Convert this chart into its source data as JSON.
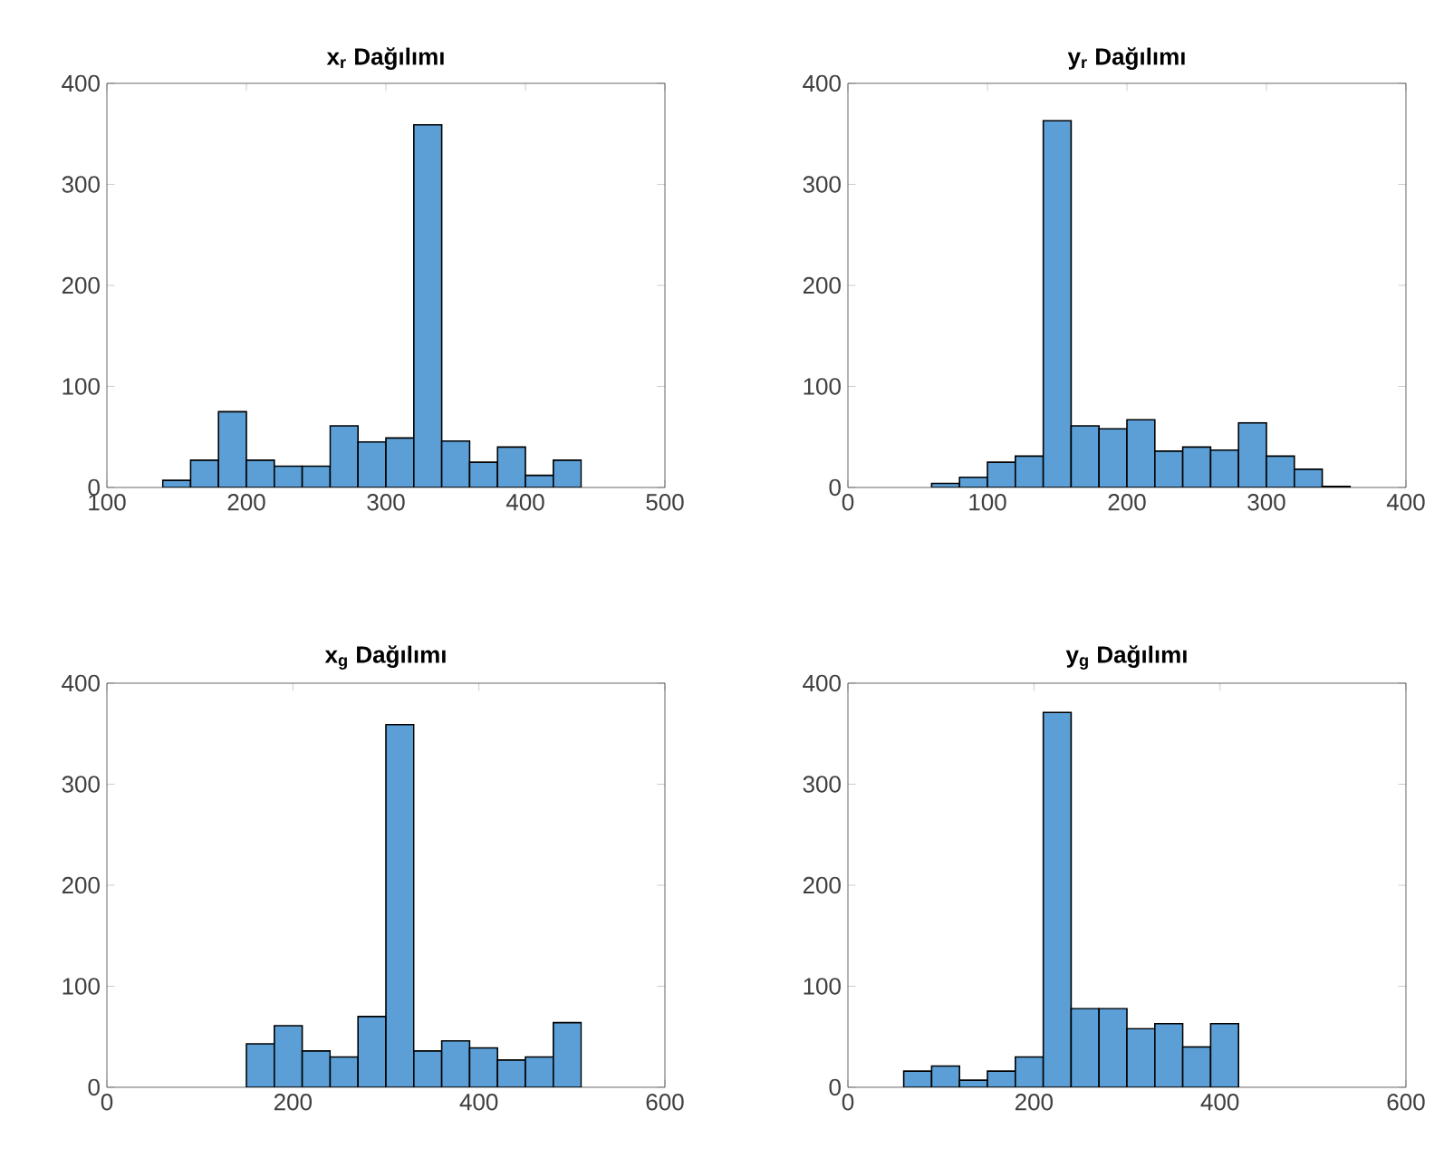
{
  "chart_data": [
    {
      "type": "histogram",
      "title": "x$_{r}$ Dağılımı",
      "bins": [
        140,
        160,
        180,
        200,
        220,
        240,
        260,
        280,
        300,
        320,
        340,
        360,
        380,
        400,
        420,
        440
      ],
      "values": [
        7,
        27,
        75,
        27,
        21,
        21,
        61,
        45,
        49,
        359,
        46,
        25,
        40,
        12,
        27
      ],
      "color": "#5b9fd6",
      "xlim": [
        100,
        500
      ],
      "xticks": [
        100,
        200,
        300,
        400,
        500
      ],
      "ylim": [
        0,
        400
      ],
      "yticks": [
        0,
        100,
        200,
        300,
        400
      ]
    },
    {
      "type": "histogram",
      "title": "y$_{r}$ Dağılımı",
      "bins": [
        60,
        80,
        100,
        120,
        140,
        160,
        180,
        200,
        220,
        240,
        260,
        280,
        300,
        320,
        340,
        360
      ],
      "values": [
        4,
        10,
        25,
        31,
        363,
        61,
        58,
        67,
        36,
        40,
        37,
        64,
        31,
        18,
        1
      ],
      "color": "#5b9fd6",
      "xlim": [
        0,
        400
      ],
      "xticks": [
        0,
        100,
        200,
        300,
        400
      ],
      "ylim": [
        0,
        400
      ],
      "yticks": [
        0,
        100,
        200,
        300,
        400
      ]
    },
    {
      "type": "histogram",
      "title": "x$_{g}$ Dağılımı",
      "bins": [
        150,
        180,
        210,
        240,
        270,
        300,
        330,
        360,
        390,
        420,
        450,
        480,
        510
      ],
      "values": [
        43,
        61,
        36,
        30,
        70,
        359,
        36,
        46,
        39,
        27,
        30,
        64
      ],
      "color": "#5b9fd6",
      "xlim": [
        0,
        600
      ],
      "xticks": [
        0,
        200,
        400,
        600
      ],
      "ylim": [
        0,
        400
      ],
      "yticks": [
        0,
        100,
        200,
        300,
        400
      ]
    },
    {
      "type": "histogram",
      "title": "y$_{g}$ Dağılımı",
      "bins": [
        60,
        90,
        120,
        150,
        180,
        210,
        240,
        270,
        300,
        330,
        360,
        390,
        420
      ],
      "values": [
        16,
        21,
        7,
        16,
        30,
        371,
        78,
        78,
        58,
        63,
        40,
        63
      ],
      "color": "#5b9fd6",
      "xlim": [
        0,
        600
      ],
      "xticks": [
        0,
        200,
        400,
        600
      ],
      "ylim": [
        0,
        400
      ],
      "yticks": [
        0,
        100,
        200,
        300,
        400
      ]
    }
  ]
}
